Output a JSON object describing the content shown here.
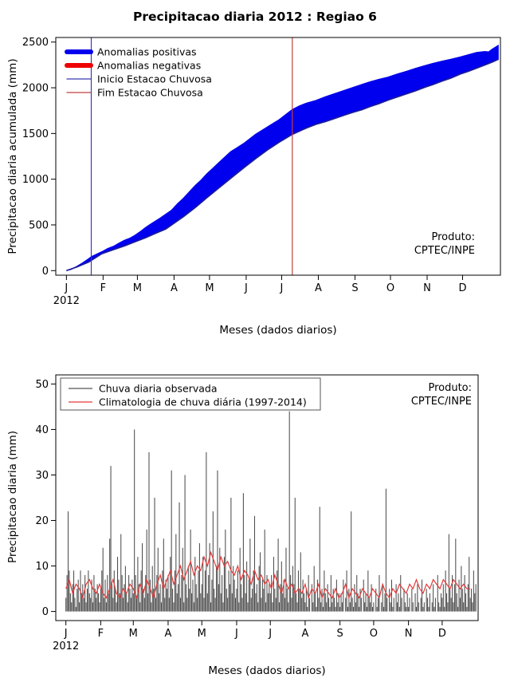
{
  "chart_data": [
    {
      "id": "acumulada",
      "type": "area",
      "title": "Precipitacao diaria 2012 : Regiao 6",
      "xlabel": "Meses (dados diarios)",
      "ylabel": "Precipitacao diaria acumulada (mm)",
      "ylim": [
        0,
        2500
      ],
      "yticks": [
        0,
        500,
        1000,
        1500,
        2000,
        2500
      ],
      "xticks": {
        "labels": [
          "J",
          "F",
          "M",
          "A",
          "M",
          "J",
          "J",
          "A",
          "S",
          "O",
          "N",
          "D"
        ],
        "days": [
          1,
          32,
          61,
          92,
          122,
          153,
          183,
          214,
          245,
          275,
          306,
          336
        ]
      },
      "year_label": "2012",
      "produto": [
        "Produto:",
        "CPTEC/INPE"
      ],
      "legend": [
        {
          "label": "Anomalias positivas",
          "color": "#0000ee",
          "lw": 6
        },
        {
          "label": "Anomalias negativas",
          "color": "#ee0000",
          "lw": 6
        },
        {
          "label": "Inicio Estacao Chuvosa",
          "color": "#3b3bb0",
          "lw": 1.3
        },
        {
          "label": "Fim Estacao Chuvosa",
          "color": "#c04040",
          "lw": 1.3
        }
      ],
      "vlines": [
        {
          "name": "inicio-estacao-chuvosa-line",
          "day": 22,
          "color": "#3b3bb0"
        },
        {
          "name": "fim-estacao-chuvosa-line",
          "day": 192,
          "color": "#c04040"
        }
      ],
      "fill": {
        "positive_color": "#0000ee",
        "negative_color": "#ee0000"
      },
      "series": [
        {
          "name": "precipitacao-acumulada-observada",
          "color": "#0000ee",
          "points": [
            [
              1,
              0
            ],
            [
              5,
              15
            ],
            [
              10,
              45
            ],
            [
              15,
              85
            ],
            [
              20,
              130
            ],
            [
              22,
              150
            ],
            [
              26,
              175
            ],
            [
              31,
              205
            ],
            [
              36,
              240
            ],
            [
              41,
              265
            ],
            [
              45,
              295
            ],
            [
              50,
              330
            ],
            [
              55,
              355
            ],
            [
              59,
              385
            ],
            [
              64,
              430
            ],
            [
              68,
              470
            ],
            [
              72,
              505
            ],
            [
              75,
              530
            ],
            [
              80,
              570
            ],
            [
              85,
              615
            ],
            [
              90,
              660
            ],
            [
              95,
              730
            ],
            [
              100,
              790
            ],
            [
              105,
              860
            ],
            [
              110,
              930
            ],
            [
              115,
              990
            ],
            [
              120,
              1060
            ],
            [
              125,
              1120
            ],
            [
              130,
              1180
            ],
            [
              135,
              1240
            ],
            [
              140,
              1300
            ],
            [
              145,
              1340
            ],
            [
              151,
              1390
            ],
            [
              156,
              1440
            ],
            [
              161,
              1490
            ],
            [
              166,
              1530
            ],
            [
              171,
              1570
            ],
            [
              176,
              1610
            ],
            [
              181,
              1650
            ],
            [
              186,
              1700
            ],
            [
              192,
              1760
            ],
            [
              198,
              1800
            ],
            [
              204,
              1830
            ],
            [
              212,
              1860
            ],
            [
              220,
              1900
            ],
            [
              228,
              1935
            ],
            [
              236,
              1970
            ],
            [
              243,
              2000
            ],
            [
              251,
              2035
            ],
            [
              258,
              2065
            ],
            [
              265,
              2090
            ],
            [
              273,
              2115
            ],
            [
              281,
              2150
            ],
            [
              289,
              2180
            ],
            [
              296,
              2210
            ],
            [
              304,
              2240
            ],
            [
              311,
              2265
            ],
            [
              319,
              2290
            ],
            [
              326,
              2310
            ],
            [
              334,
              2335
            ],
            [
              341,
              2360
            ],
            [
              348,
              2385
            ],
            [
              355,
              2395
            ],
            [
              358,
              2390
            ],
            [
              361,
              2420
            ],
            [
              366,
              2460
            ]
          ]
        },
        {
          "name": "climatologia-acumulada",
          "color": "#26267a",
          "points": [
            [
              1,
              0
            ],
            [
              10,
              40
            ],
            [
              20,
              95
            ],
            [
              31,
              185
            ],
            [
              41,
              230
            ],
            [
              50,
              270
            ],
            [
              59,
              315
            ],
            [
              68,
              360
            ],
            [
              75,
              400
            ],
            [
              85,
              455
            ],
            [
              90,
              500
            ],
            [
              100,
              590
            ],
            [
              110,
              690
            ],
            [
              120,
              800
            ],
            [
              130,
              905
            ],
            [
              140,
              1010
            ],
            [
              151,
              1125
            ],
            [
              161,
              1225
            ],
            [
              171,
              1320
            ],
            [
              181,
              1405
            ],
            [
              192,
              1490
            ],
            [
              204,
              1560
            ],
            [
              212,
              1600
            ],
            [
              220,
              1630
            ],
            [
              228,
              1665
            ],
            [
              236,
              1700
            ],
            [
              243,
              1730
            ],
            [
              251,
              1760
            ],
            [
              258,
              1795
            ],
            [
              265,
              1825
            ],
            [
              273,
              1865
            ],
            [
              281,
              1900
            ],
            [
              289,
              1935
            ],
            [
              296,
              1965
            ],
            [
              304,
              2005
            ],
            [
              311,
              2035
            ],
            [
              319,
              2075
            ],
            [
              326,
              2105
            ],
            [
              334,
              2150
            ],
            [
              341,
              2180
            ],
            [
              348,
              2215
            ],
            [
              355,
              2250
            ],
            [
              361,
              2280
            ],
            [
              366,
              2310
            ]
          ]
        }
      ]
    },
    {
      "id": "diaria",
      "type": "bar",
      "xlabel": "Meses (dados diarios)",
      "ylabel": "Precipitacao diaria (mm)",
      "ylim": [
        0,
        50
      ],
      "yticks": [
        0,
        10,
        20,
        30,
        40,
        50
      ],
      "xticks": {
        "labels": [
          "J",
          "F",
          "M",
          "A",
          "M",
          "J",
          "J",
          "A",
          "S",
          "O",
          "N",
          "D"
        ],
        "days": [
          1,
          32,
          61,
          92,
          122,
          153,
          183,
          214,
          245,
          275,
          306,
          336
        ]
      },
      "year_label": "2012",
      "produto": [
        "Produto:",
        "CPTEC/INPE"
      ],
      "legend": [
        {
          "label": "Chuva diaria observada",
          "color": "#555555",
          "lw": 1.3
        },
        {
          "label": "Climatologia de chuva diária (1997-2014)",
          "color": "#e23b3b",
          "lw": 1.3
        }
      ],
      "bars": {
        "name": "chuva-diaria-observada",
        "color": "#4d4d4d",
        "values": [
          3,
          8,
          22,
          9,
          4,
          2,
          6,
          9,
          3,
          1,
          5,
          7,
          2,
          9,
          4,
          6,
          3,
          8,
          2,
          5,
          9,
          4,
          3,
          7,
          2,
          8,
          5,
          3,
          6,
          4,
          2,
          5,
          9,
          14,
          3,
          7,
          2,
          8,
          4,
          16,
          32,
          6,
          3,
          9,
          5,
          2,
          12,
          7,
          4,
          17,
          8,
          3,
          6,
          10,
          4,
          2,
          8,
          5,
          3,
          7,
          4,
          40,
          8,
          3,
          12,
          6,
          2,
          9,
          15,
          5,
          3,
          8,
          18,
          4,
          35,
          7,
          2,
          10,
          5,
          25,
          3,
          8,
          14,
          4,
          6,
          2,
          9,
          16,
          3,
          7,
          5,
          8,
          3,
          12,
          31,
          5,
          2,
          9,
          17,
          4,
          6,
          24,
          3,
          8,
          14,
          2,
          30,
          6,
          3,
          10,
          5,
          18,
          4,
          7,
          2,
          12,
          6,
          3,
          9,
          15,
          4,
          6,
          12,
          3,
          9,
          35,
          4,
          8,
          15,
          2,
          7,
          22,
          5,
          3,
          10,
          31,
          6,
          14,
          4,
          8,
          2,
          12,
          18,
          5,
          3,
          9,
          6,
          25,
          4,
          10,
          7,
          3,
          5,
          9,
          2,
          14,
          6,
          3,
          26,
          8,
          4,
          11,
          2,
          7,
          16,
          3,
          5,
          9,
          21,
          4,
          6,
          2,
          10,
          13,
          3,
          7,
          5,
          18,
          2,
          8,
          4,
          6,
          4,
          8,
          2,
          12,
          5,
          3,
          9,
          16,
          2,
          6,
          11,
          4,
          7,
          3,
          14,
          5,
          2,
          44,
          8,
          3,
          10,
          6,
          25,
          4,
          2,
          9,
          5,
          13,
          3,
          7,
          4,
          2,
          5,
          1,
          8,
          3,
          0,
          6,
          2,
          10,
          4,
          1,
          7,
          3,
          23,
          2,
          5,
          1,
          9,
          4,
          2,
          6,
          3,
          1,
          8,
          2,
          5,
          3,
          1,
          7,
          2,
          4,
          1,
          4,
          2,
          7,
          0,
          3,
          9,
          1,
          5,
          2,
          22,
          3,
          1,
          6,
          2,
          8,
          4,
          1,
          5,
          3,
          0,
          7,
          2,
          4,
          1,
          9,
          3,
          2,
          6,
          1,
          2,
          0,
          5,
          1,
          3,
          8,
          0,
          2,
          6,
          1,
          4,
          27,
          3,
          0,
          5,
          2,
          7,
          1,
          3,
          0,
          6,
          2,
          4,
          1,
          8,
          3,
          0,
          5,
          2,
          1,
          4,
          1,
          3,
          0,
          5,
          2,
          0,
          4,
          1,
          6,
          2,
          0,
          3,
          7,
          1,
          2,
          0,
          5,
          3,
          1,
          4,
          0,
          2,
          6,
          1,
          3,
          0,
          8,
          2,
          1,
          4,
          3,
          6,
          1,
          9,
          4,
          2,
          17,
          5,
          3,
          8,
          2,
          6,
          16,
          4,
          1,
          7,
          3,
          10,
          5,
          2,
          8,
          4,
          1,
          6,
          12,
          3,
          5,
          2,
          9,
          4,
          6
        ]
      },
      "line": {
        "name": "climatologia-chuva-diaria",
        "color": "#e23b3b",
        "x_start": 1,
        "x_step": 3,
        "values": [
          5,
          7,
          4,
          6,
          5,
          3,
          6,
          7,
          5,
          4,
          6,
          4,
          3,
          5,
          7,
          4,
          3,
          5,
          4,
          6,
          5,
          3,
          6,
          4,
          7,
          5,
          3,
          6,
          8,
          5,
          7,
          9,
          6,
          8,
          10,
          7,
          9,
          11,
          8,
          10,
          9,
          12,
          10,
          13,
          11,
          9,
          12,
          10,
          11,
          9,
          8,
          10,
          7,
          9,
          8,
          6,
          9,
          7,
          8,
          6,
          7,
          5,
          8,
          6,
          4,
          7,
          5,
          6,
          4,
          5,
          4,
          6,
          3,
          5,
          4,
          6,
          3,
          5,
          4,
          3,
          5,
          3,
          4,
          6,
          3,
          5,
          4,
          3,
          5,
          4,
          3,
          5,
          4,
          3,
          6,
          4,
          3,
          5,
          4,
          6,
          5,
          4,
          6,
          5,
          7,
          5,
          4,
          6,
          5,
          7,
          6,
          5,
          7,
          6,
          5,
          7,
          6,
          5,
          6,
          5,
          5
        ]
      }
    }
  ]
}
